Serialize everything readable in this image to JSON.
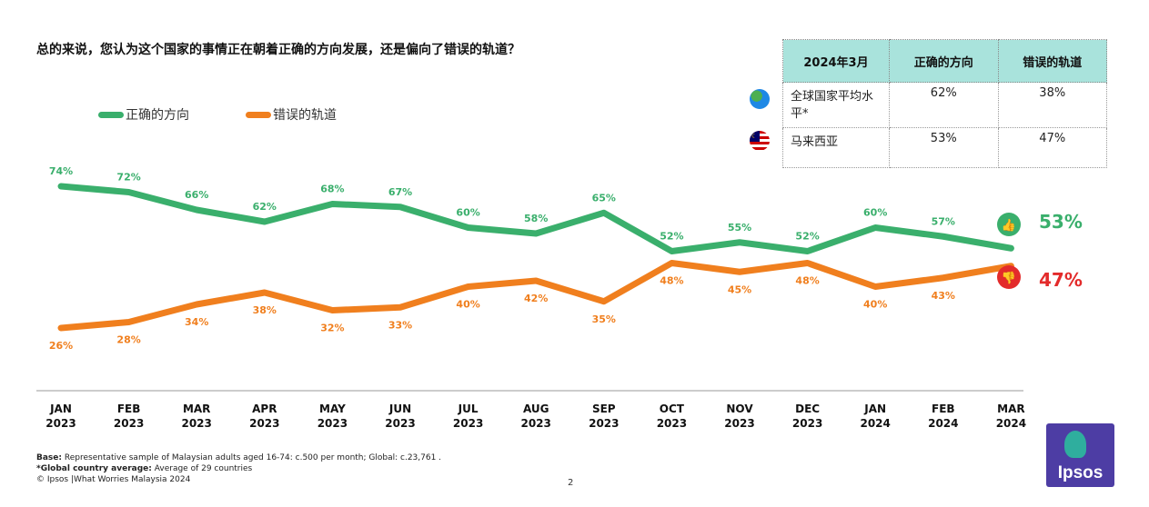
{
  "question": "总的来说，您认为这个国家的事情正在朝着正确的方向发展，还是偏向了错误的轨道？",
  "legend": {
    "right": "正确的方向",
    "wrong": "错误的轨道"
  },
  "table": {
    "headers": [
      "2024年3月",
      "正确的方向",
      "错误的轨道"
    ],
    "rows": [
      {
        "label": "全球国家平均水平*",
        "right": "62%",
        "wrong": "38%",
        "icon": "globe-icon"
      },
      {
        "label": "马来西亚",
        "right": "53%",
        "wrong": "47%",
        "icon": "malaysia-flag-icon"
      }
    ]
  },
  "end_labels": {
    "right": "53%",
    "wrong": "47%"
  },
  "colors": {
    "right": "#3aaf6c",
    "wrong": "#f07f1e",
    "wrong_end": "#e32b2b",
    "header_bg": "#a9e3dc",
    "logo_bg": "#4d3da4"
  },
  "chart_data": {
    "type": "line",
    "categories": [
      "JAN 2023",
      "FEB 2023",
      "MAR 2023",
      "APR 2023",
      "MAY 2023",
      "JUN 2023",
      "JUL 2023",
      "AUG 2023",
      "SEP 2023",
      "OCT 2023",
      "NOV 2023",
      "DEC 2023",
      "JAN 2024",
      "FEB 2024",
      "MAR 2024"
    ],
    "series": [
      {
        "name": "正确的方向",
        "values": [
          74,
          72,
          66,
          62,
          68,
          67,
          60,
          58,
          65,
          52,
          55,
          52,
          60,
          57,
          53
        ]
      },
      {
        "name": "错误的轨道",
        "values": [
          26,
          28,
          34,
          38,
          32,
          33,
          40,
          42,
          35,
          48,
          45,
          48,
          40,
          43,
          47
        ]
      }
    ],
    "value_suffix": "%",
    "grid": false,
    "legend_position": "top-left"
  },
  "footer": {
    "base_label": "Base:",
    "base_text": "Representative sample of Malaysian adults aged 16-74: c.500 per month; Global: c.23,761 .",
    "global_label": "*Global country average:",
    "global_text": "Average of 29 countries",
    "copyright": "© Ipsos |What Worries Malaysia 2024"
  },
  "page_number": "2",
  "logo_text": "Ipsos"
}
